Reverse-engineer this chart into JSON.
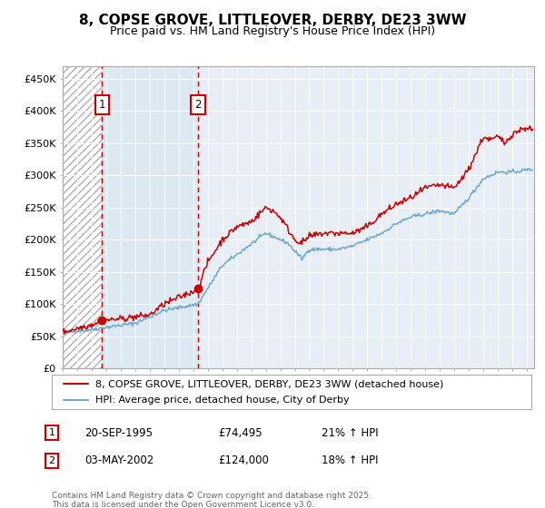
{
  "title": "8, COPSE GROVE, LITTLEOVER, DERBY, DE23 3WW",
  "subtitle": "Price paid vs. HM Land Registry's House Price Index (HPI)",
  "legend_entry1": "8, COPSE GROVE, LITTLEOVER, DERBY, DE23 3WW (detached house)",
  "legend_entry2": "HPI: Average price, detached house, City of Derby",
  "annotation1_date": "20-SEP-1995",
  "annotation1_price": "£74,495",
  "annotation1_hpi": "21% ↑ HPI",
  "annotation2_date": "03-MAY-2002",
  "annotation2_price": "£124,000",
  "annotation2_hpi": "18% ↑ HPI",
  "footer": "Contains HM Land Registry data © Crown copyright and database right 2025.\nThis data is licensed under the Open Government Licence v3.0.",
  "plot_bg": "#e8eef5",
  "hatch_bg": "#ffffff",
  "between_bg": "#dce8f2",
  "red_line_color": "#cc0000",
  "blue_line_color": "#6fa8d0",
  "grid_color": "#ffffff",
  "marker1_x": 1995.72,
  "marker1_y": 74495,
  "marker2_x": 2002.33,
  "marker2_y": 124000,
  "vline1_x": 1995.72,
  "vline2_x": 2002.33,
  "ylim_min": 0,
  "ylim_max": 470000,
  "xlim_min": 1993.0,
  "xlim_max": 2025.5,
  "yticks": [
    0,
    50000,
    100000,
    150000,
    200000,
    250000,
    300000,
    350000,
    400000,
    450000
  ],
  "ytick_labels": [
    "£0",
    "£50K",
    "£100K",
    "£150K",
    "£200K",
    "£250K",
    "£300K",
    "£350K",
    "£400K",
    "£450K"
  ],
  "xticks": [
    1993,
    1994,
    1995,
    1996,
    1997,
    1998,
    1999,
    2000,
    2001,
    2002,
    2003,
    2004,
    2005,
    2006,
    2007,
    2008,
    2009,
    2010,
    2011,
    2012,
    2013,
    2014,
    2015,
    2016,
    2017,
    2018,
    2019,
    2020,
    2021,
    2022,
    2023,
    2024,
    2025
  ]
}
